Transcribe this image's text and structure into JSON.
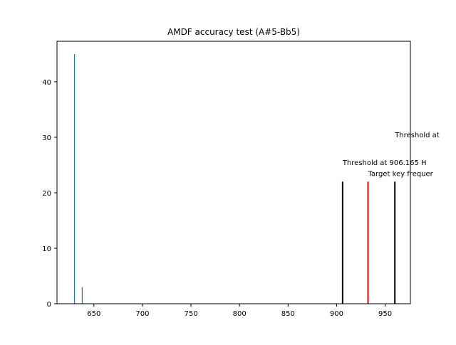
{
  "chart_data": {
    "type": "bar",
    "title": "AMDF accuracy test (A#5-Bb5)",
    "xlabel": "",
    "ylabel": "",
    "xlim": [
      612,
      976
    ],
    "ylim": [
      0,
      47.3
    ],
    "grid": false,
    "x_ticks": [
      650,
      700,
      750,
      800,
      850,
      900,
      950
    ],
    "y_ticks": [
      0,
      10,
      20,
      30,
      40
    ],
    "series": [
      {
        "color": "#1f77b4",
        "bars": [
          {
            "x": 630,
            "value": 45
          },
          {
            "x": 638,
            "value": 3
          }
        ]
      }
    ],
    "reference_lines": [
      {
        "x": 906.165,
        "value": 22,
        "color": "#000000"
      },
      {
        "x": 932.33,
        "value": 22,
        "color": "#ff0000"
      },
      {
        "x": 960,
        "value": 22,
        "color": "#000000"
      }
    ],
    "annotations": [
      {
        "text": "Threshold at 906.165 H",
        "x": 906.165,
        "y": 25
      },
      {
        "text": "Target key frequer",
        "x": 932.33,
        "y": 23
      },
      {
        "text": "Threshold at",
        "x": 960,
        "y": 30
      }
    ]
  }
}
